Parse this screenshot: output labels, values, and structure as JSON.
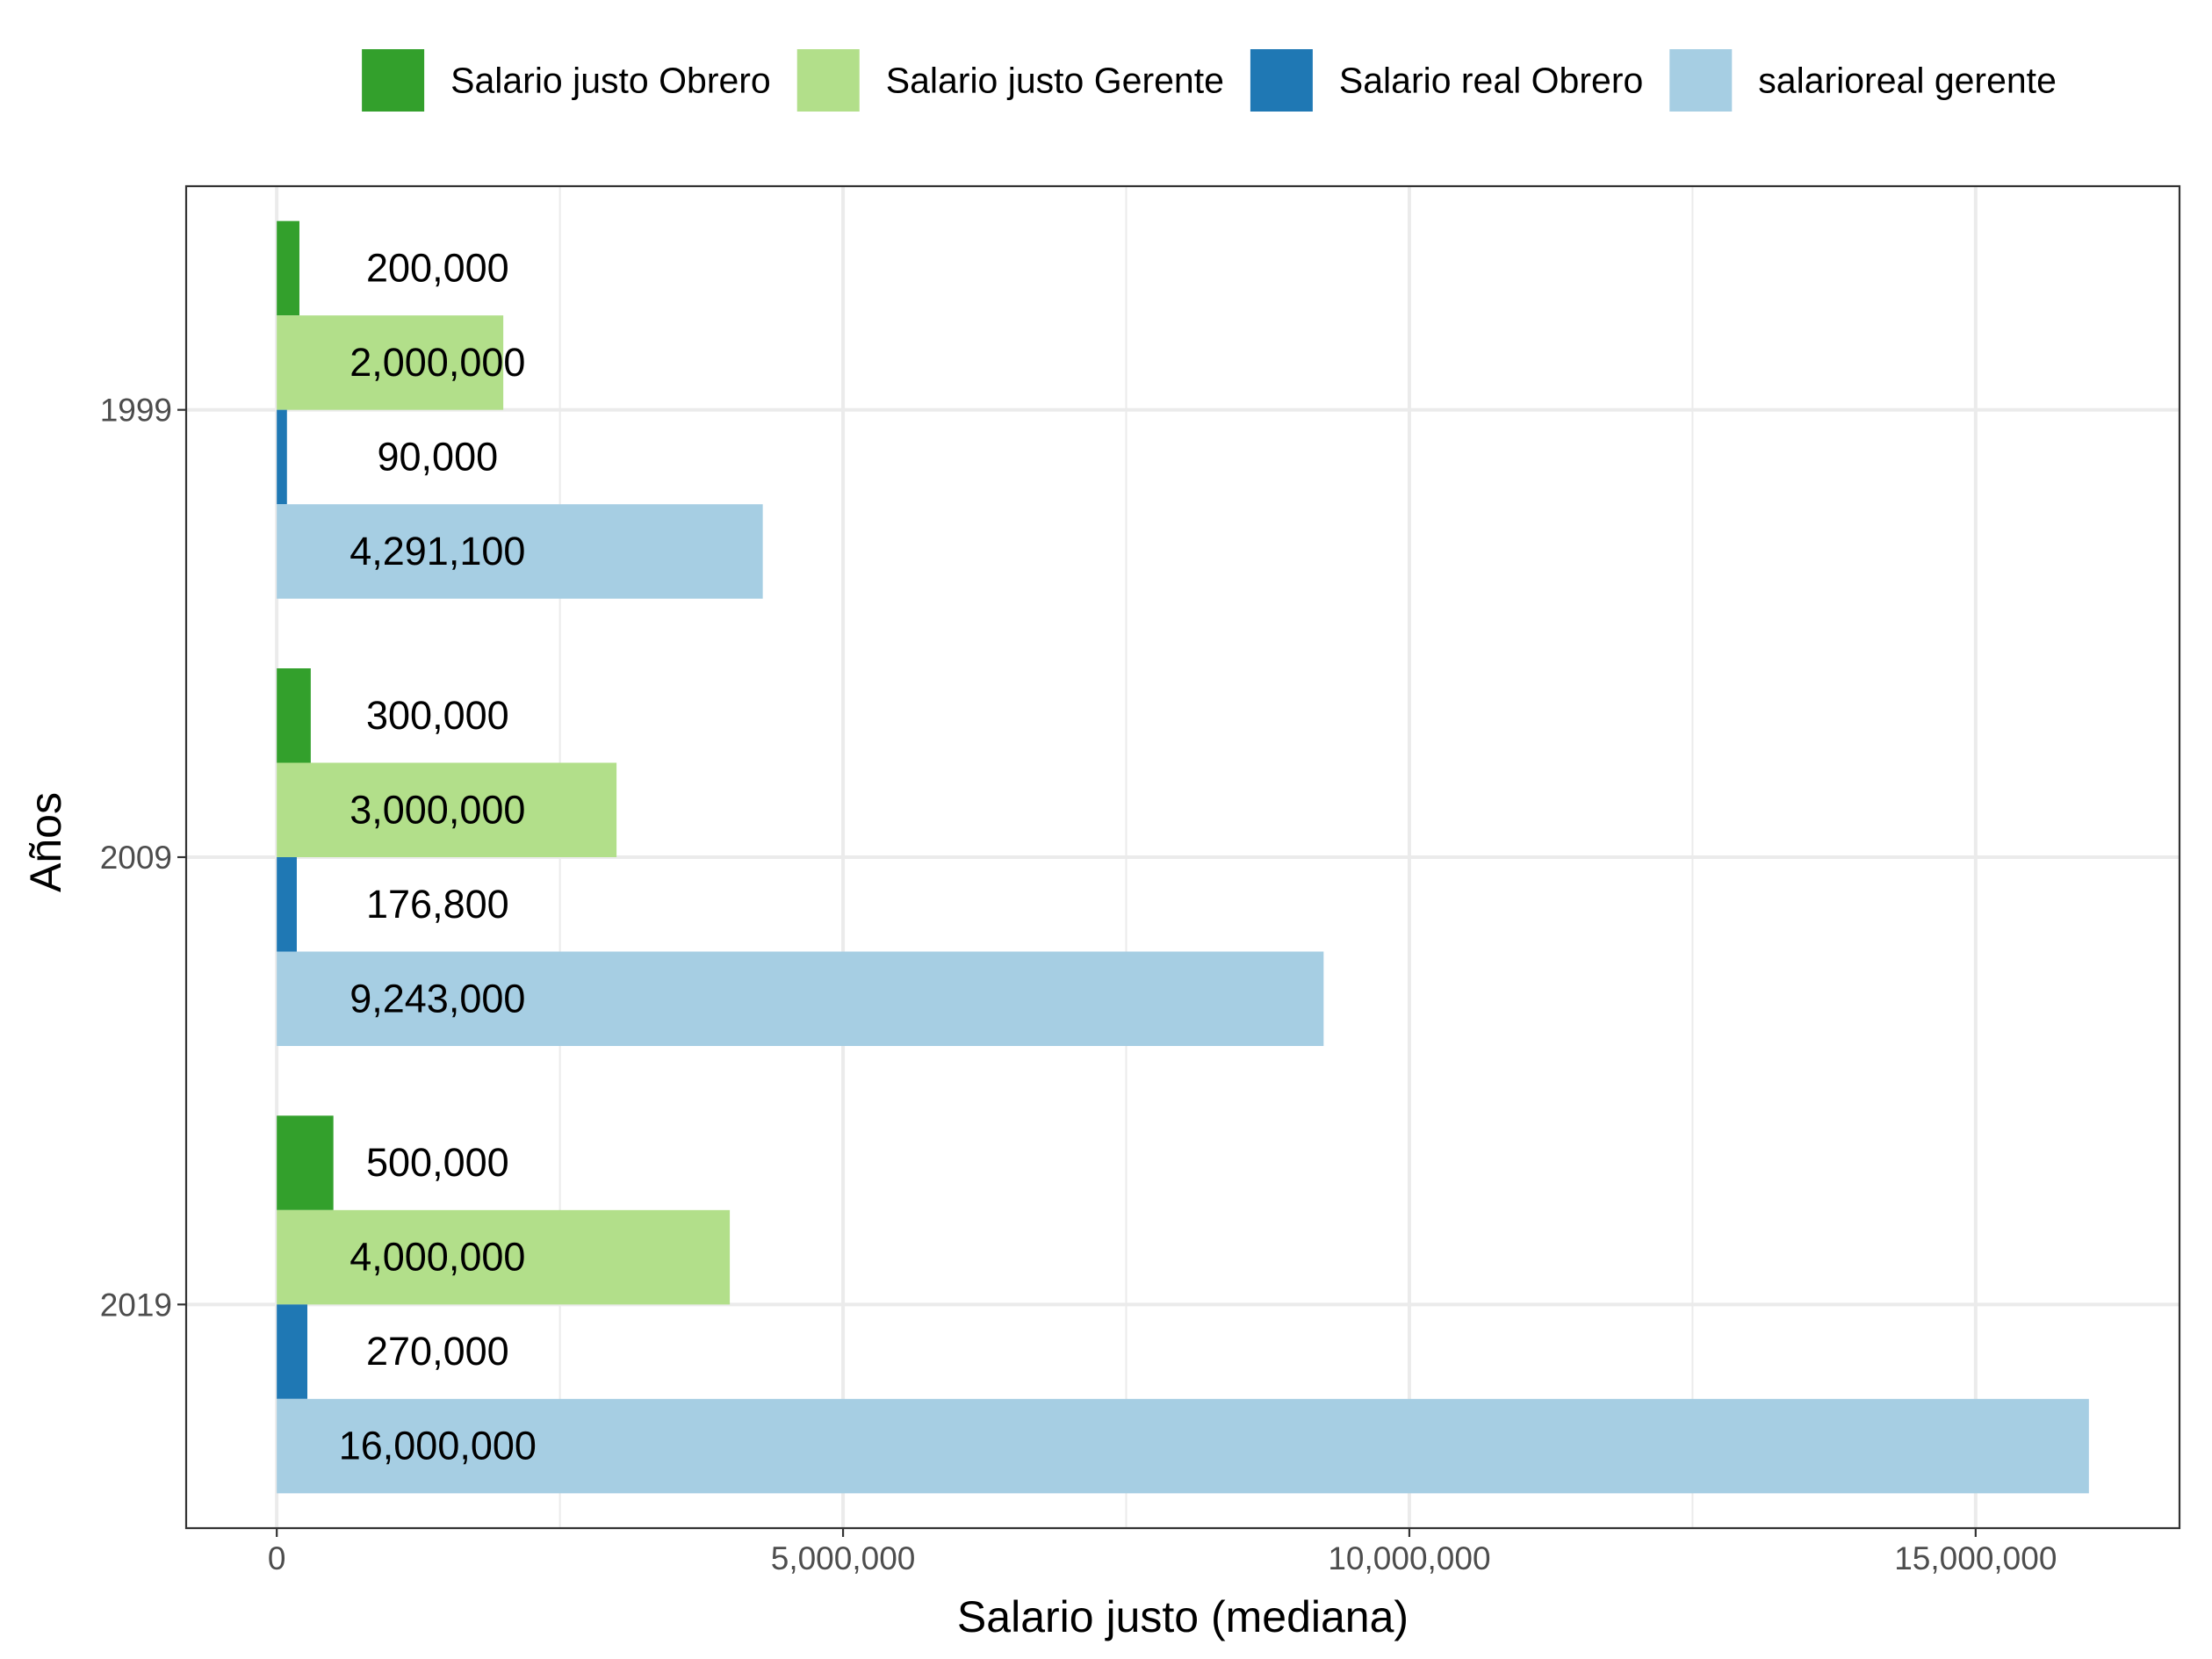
{
  "chart_data": {
    "type": "bar",
    "orientation": "horizontal",
    "categories": [
      "1999",
      "2009",
      "2019"
    ],
    "series": [
      {
        "name": "Salario justo Obrero",
        "color": "#33a02c",
        "values": [
          200000,
          300000,
          500000
        ],
        "labels": [
          "200,000",
          "300,000",
          "500,000"
        ]
      },
      {
        "name": "Salario justo Gerente",
        "color": "#b2df8a",
        "values": [
          2000000,
          3000000,
          4000000
        ],
        "labels": [
          "2,000,000",
          "3,000,000",
          "4,000,000"
        ]
      },
      {
        "name": "Salario real Obrero",
        "color": "#1f78b4",
        "values": [
          90000,
          176800,
          270000
        ],
        "labels": [
          "90,000",
          "176,800",
          "270,000"
        ]
      },
      {
        "name": "salarioreal gerente",
        "color": "#a6cee3",
        "values": [
          4291100,
          9243000,
          16000000
        ],
        "labels": [
          "4,291,100",
          "9,243,000",
          "16,000,000"
        ]
      }
    ],
    "xlabel": "Salario justo (mediana)",
    "ylabel": "Años",
    "xlim": [
      -800000,
      16800000
    ],
    "x_ticks": [
      0,
      5000000,
      10000000,
      15000000
    ],
    "x_tick_labels": [
      "0",
      "5,000,000",
      "10,000,000",
      "15,000,000"
    ],
    "grid": true,
    "legend_position": "top",
    "theme": "bw"
  }
}
